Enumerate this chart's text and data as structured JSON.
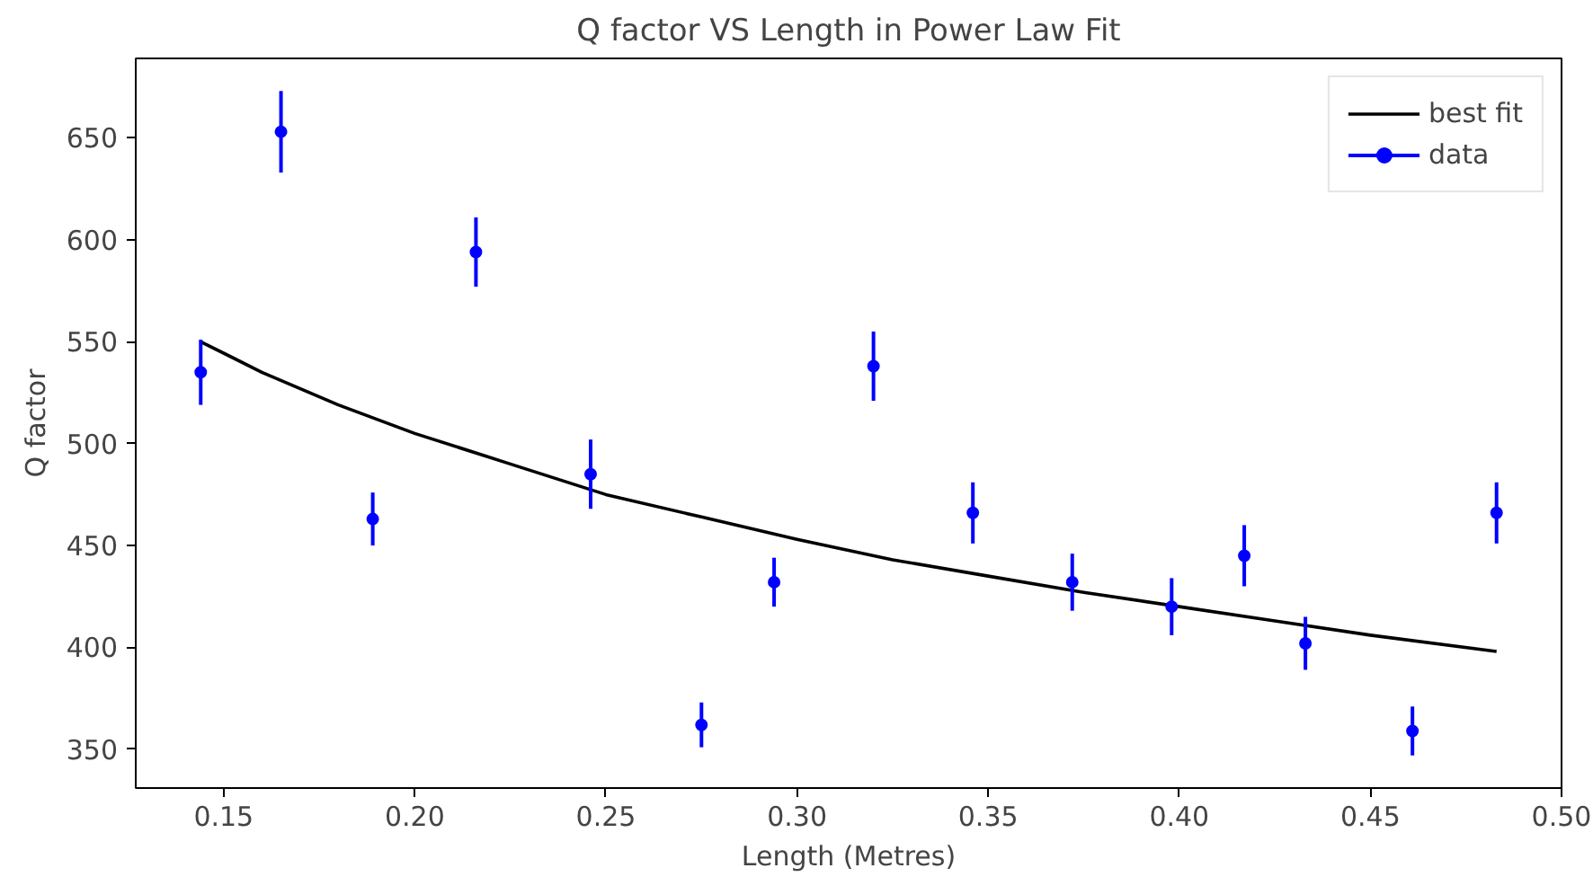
{
  "chart_data": {
    "type": "scatter",
    "title": "Q factor VS Length in Power Law Fit",
    "xlabel": "Length (Metres)",
    "ylabel": "Q factor",
    "xlim": [
      0.127,
      0.5
    ],
    "ylim": [
      331,
      689
    ],
    "xticks": [
      {
        "value": 0.15,
        "label": "0.15"
      },
      {
        "value": 0.2,
        "label": "0.20"
      },
      {
        "value": 0.25,
        "label": "0.25"
      },
      {
        "value": 0.3,
        "label": "0.30"
      },
      {
        "value": 0.35,
        "label": "0.35"
      },
      {
        "value": 0.4,
        "label": "0.40"
      },
      {
        "value": 0.45,
        "label": "0.45"
      },
      {
        "value": 0.5,
        "label": "0.50"
      }
    ],
    "yticks": [
      350,
      400,
      450,
      500,
      550,
      600,
      650
    ],
    "grid": false,
    "legend": "top right",
    "series": [
      {
        "name": "best fit",
        "type": "line",
        "color": "#000000",
        "marker": "none",
        "line_style": "solid",
        "x": [
          0.144,
          0.16,
          0.18,
          0.2,
          0.225,
          0.25,
          0.275,
          0.3,
          0.325,
          0.35,
          0.375,
          0.4,
          0.425,
          0.45,
          0.483
        ],
        "values": [
          550,
          535,
          519,
          505,
          490,
          475,
          464,
          453,
          443,
          435,
          427,
          420,
          413,
          406,
          398
        ]
      },
      {
        "name": "data",
        "color": "#0000ff",
        "marker": "circle",
        "x": [
          0.144,
          0.165,
          0.189,
          0.216,
          0.246,
          0.275,
          0.294,
          0.32,
          0.346,
          0.372,
          0.398,
          0.417,
          0.433,
          0.461,
          0.483
        ],
        "values": [
          535,
          653,
          463,
          594,
          485,
          362,
          432,
          538,
          466,
          432,
          420,
          445,
          402,
          359,
          466
        ],
        "errors": [
          16,
          20,
          13,
          17,
          17,
          11,
          12,
          17,
          15,
          14,
          14,
          15,
          13,
          12,
          15
        ]
      }
    ]
  }
}
